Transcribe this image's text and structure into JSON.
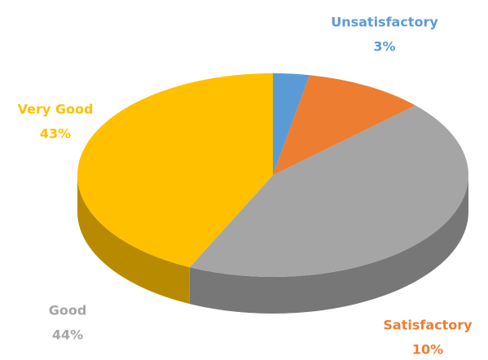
{
  "chart_data": {
    "type": "pie",
    "categories": [
      "Unsatisfactory",
      "Satisfactory",
      "Good",
      "Very Good"
    ],
    "values": [
      3,
      10,
      44,
      43
    ],
    "value_labels": [
      "3%",
      "10%",
      "44%",
      "43%"
    ],
    "colors": [
      "#5b9bd5",
      "#ed7d31",
      "#a5a5a5",
      "#ffc000"
    ]
  }
}
